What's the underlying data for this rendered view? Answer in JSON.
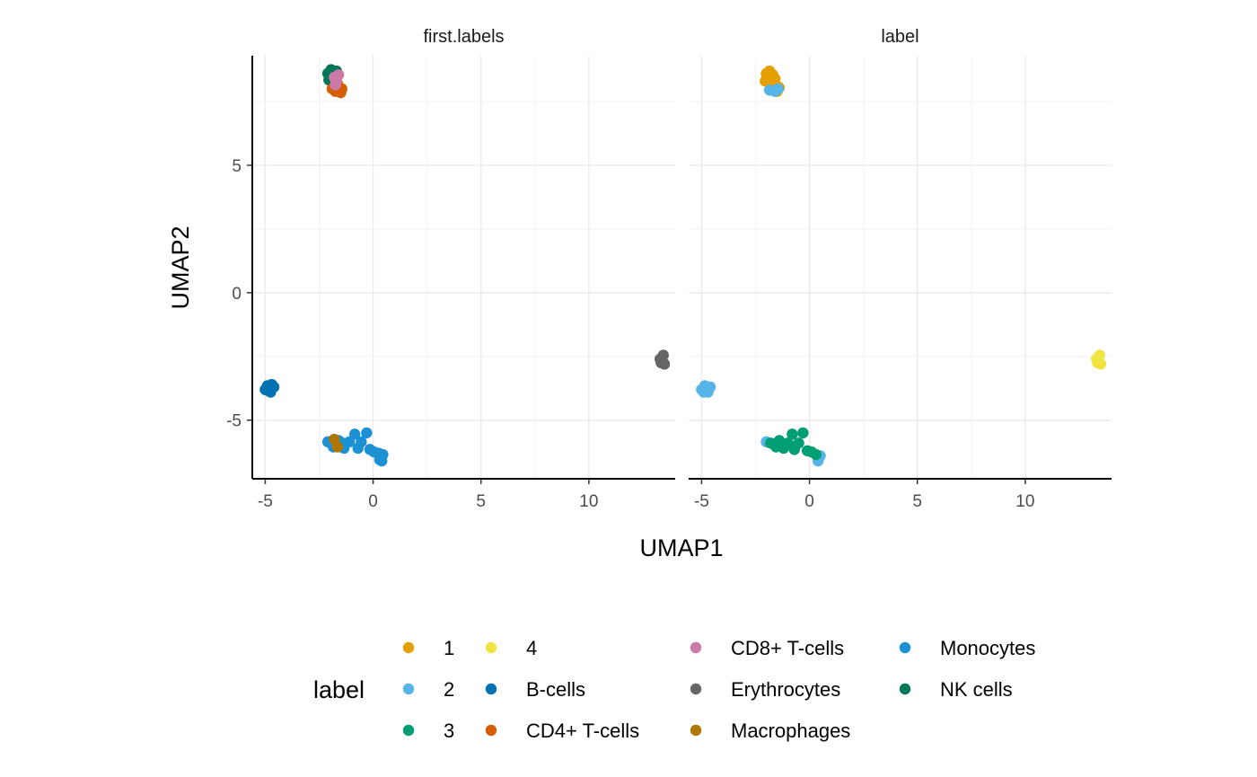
{
  "chart_data": {
    "type": "scatter",
    "xlabel": "UMAP1",
    "ylabel": "UMAP2",
    "xlim": [
      -5.6,
      14.0
    ],
    "ylim": [
      -7.3,
      9.3
    ],
    "x_ticks": [
      -5,
      0,
      5,
      10
    ],
    "y_ticks": [
      -5,
      0,
      5
    ],
    "x_tick_labels": [
      "-5",
      "0",
      "5",
      "10"
    ],
    "y_tick_labels": [
      "-5",
      "0",
      "5"
    ],
    "grid": true,
    "legend_position": "bottom",
    "legend_title": "label",
    "colors": {
      "1": "#E69F00",
      "2": "#56B4E9",
      "3": "#009E73",
      "4": "#F0E442",
      "B-cells": "#0072B2",
      "CD4+ T-cells": "#D55E00",
      "CD8+ T-cells": "#CC79A7",
      "Erythrocytes": "#666666",
      "Macrophages": "#AD7700",
      "Monocytes": "#1C91D4",
      "NK cells": "#007756"
    },
    "legend_entries": [
      "1",
      "2",
      "3",
      "4",
      "B-cells",
      "CD4+ T-cells",
      "CD8+ T-cells",
      "Erythrocytes",
      "Macrophages",
      "Monocytes",
      "NK cells"
    ],
    "facets": [
      {
        "title": "first.labels",
        "series": [
          {
            "name": "NK cells",
            "points": [
              [
                -2.1,
                8.6
              ],
              [
                -1.95,
                8.75
              ],
              [
                -1.8,
                8.5
              ],
              [
                -2.05,
                8.35
              ],
              [
                -1.7,
                8.7
              ]
            ]
          },
          {
            "name": "CD4+ T-cells",
            "points": [
              [
                -1.9,
                8.0
              ],
              [
                -1.75,
                7.9
              ],
              [
                -1.6,
                8.1
              ],
              [
                -1.5,
                7.85
              ],
              [
                -1.65,
                8.2
              ],
              [
                -1.45,
                8.0
              ]
            ]
          },
          {
            "name": "CD8+ T-cells",
            "points": [
              [
                -1.8,
                8.45
              ],
              [
                -1.7,
                8.3
              ],
              [
                -1.6,
                8.55
              ],
              [
                -1.75,
                8.15
              ]
            ]
          },
          {
            "name": "B-cells",
            "points": [
              [
                -5.0,
                -3.8
              ],
              [
                -4.9,
                -3.65
              ],
              [
                -4.75,
                -3.9
              ],
              [
                -4.6,
                -3.7
              ],
              [
                -4.85,
                -3.85
              ],
              [
                -4.7,
                -3.6
              ]
            ]
          },
          {
            "name": "Erythrocytes",
            "points": [
              [
                13.3,
                -2.6
              ],
              [
                13.45,
                -2.45
              ],
              [
                13.5,
                -2.8
              ],
              [
                13.35,
                -2.75
              ]
            ]
          },
          {
            "name": "Monocytes",
            "points": [
              [
                -2.1,
                -5.85
              ],
              [
                -1.85,
                -6.05
              ],
              [
                -1.6,
                -5.8
              ],
              [
                -1.35,
                -6.1
              ],
              [
                -1.1,
                -5.85
              ],
              [
                -0.85,
                -5.55
              ],
              [
                -0.7,
                -6.1
              ],
              [
                -0.55,
                -5.85
              ],
              [
                -0.3,
                -5.5
              ],
              [
                -0.15,
                -6.15
              ],
              [
                0.05,
                -6.25
              ],
              [
                0.25,
                -6.3
              ],
              [
                0.4,
                -6.6
              ],
              [
                0.45,
                -6.35
              ],
              [
                0.3,
                -6.55
              ],
              [
                -1.4,
                -5.9
              ]
            ]
          },
          {
            "name": "Macrophages",
            "points": [
              [
                -1.8,
                -5.75
              ],
              [
                -1.65,
                -6.05
              ]
            ]
          }
        ]
      },
      {
        "title": "label",
        "series": [
          {
            "name": "1",
            "points": [
              [
                -2.0,
                8.6
              ],
              [
                -1.85,
                8.7
              ],
              [
                -1.7,
                8.55
              ],
              [
                -1.9,
                8.35
              ],
              [
                -2.05,
                8.3
              ],
              [
                -1.6,
                8.4
              ],
              [
                -1.55,
                8.15
              ],
              [
                -1.75,
                8.2
              ],
              [
                -1.5,
                7.9
              ],
              [
                -1.4,
                8.05
              ]
            ]
          },
          {
            "name": "2",
            "points": [
              [
                -1.85,
                7.95
              ],
              [
                -1.6,
                7.9
              ],
              [
                -1.45,
                8.0
              ],
              [
                -5.0,
                -3.8
              ],
              [
                -4.85,
                -3.65
              ],
              [
                -4.7,
                -3.9
              ],
              [
                -4.6,
                -3.7
              ],
              [
                -4.9,
                -3.9
              ],
              [
                -2.0,
                -5.85
              ],
              [
                0.4,
                -6.6
              ],
              [
                0.5,
                -6.4
              ]
            ]
          },
          {
            "name": "3",
            "points": [
              [
                -1.8,
                -5.9
              ],
              [
                -1.55,
                -6.05
              ],
              [
                -1.4,
                -5.8
              ],
              [
                -1.2,
                -6.1
              ],
              [
                -1.0,
                -5.9
              ],
              [
                -0.8,
                -5.55
              ],
              [
                -0.7,
                -6.15
              ],
              [
                -0.5,
                -5.9
              ],
              [
                -0.3,
                -5.5
              ],
              [
                -0.1,
                -6.2
              ],
              [
                0.1,
                -6.25
              ],
              [
                0.3,
                -6.35
              ]
            ]
          },
          {
            "name": "4",
            "points": [
              [
                13.3,
                -2.6
              ],
              [
                13.45,
                -2.45
              ],
              [
                13.5,
                -2.8
              ],
              [
                13.35,
                -2.75
              ]
            ]
          }
        ]
      }
    ]
  }
}
